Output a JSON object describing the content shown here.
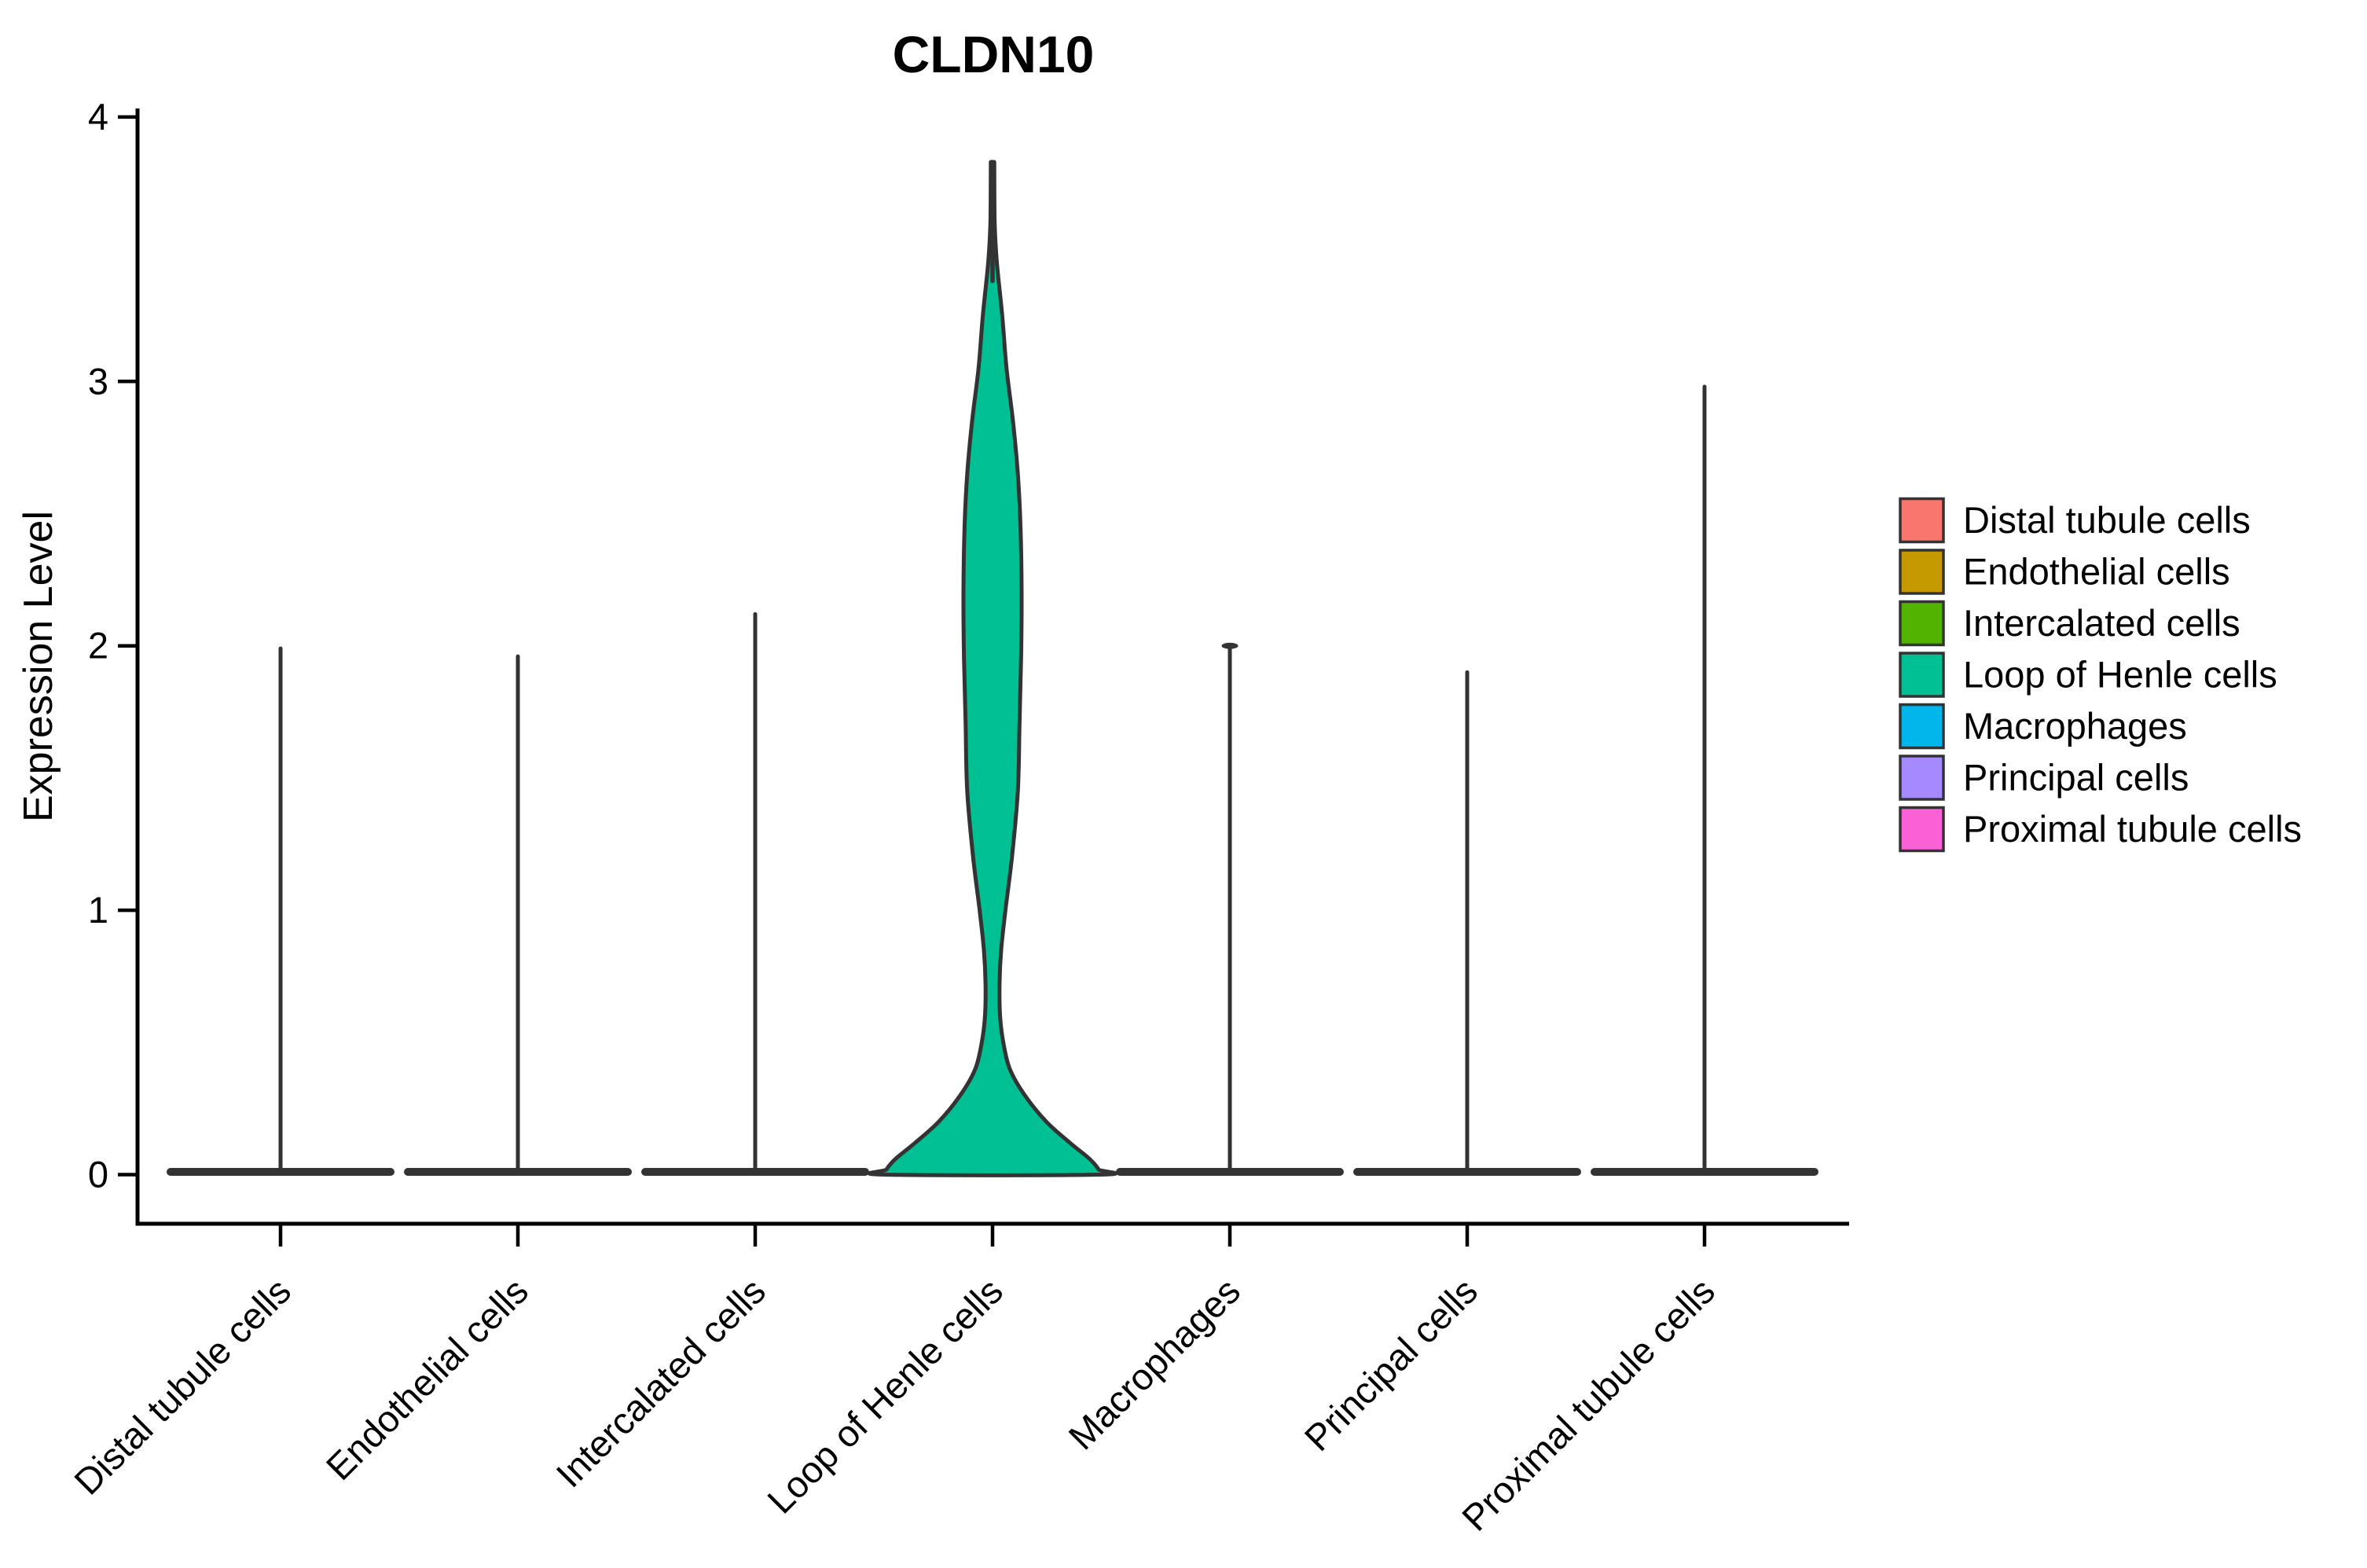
{
  "chart_data": {
    "type": "violin",
    "title": "CLDN10",
    "ylabel": "Expression Level",
    "xlabel": "",
    "grid": false,
    "legend_position": "right",
    "ylim": [
      -0.19,
      4.02
    ],
    "yticks": [
      0,
      1,
      2,
      3,
      4
    ],
    "categories": [
      "Distal tubule cells",
      "Endothelial cells",
      "Intercalated cells",
      "Loop of Henle cells",
      "Macrophages",
      "Principal cells",
      "Proximal tubule cells"
    ],
    "series": [
      {
        "name": "Distal tubule cells",
        "color": "#F8766D",
        "max_expression": 1.99,
        "shape": "spike",
        "base_at_zero": true,
        "top_cap": false
      },
      {
        "name": "Endothelial cells",
        "color": "#C49A00",
        "max_expression": 1.96,
        "shape": "spike",
        "base_at_zero": true,
        "top_cap": false
      },
      {
        "name": "Intercalated cells",
        "color": "#53B400",
        "max_expression": 2.12,
        "shape": "spike",
        "base_at_zero": true,
        "top_cap": false
      },
      {
        "name": "Loop of Henle cells",
        "color": "#00C094",
        "max_expression": 3.83,
        "shape": "violin",
        "base_at_zero": true,
        "top_cap": false,
        "density_profile": [
          [
            3.83,
            0.0
          ],
          [
            3.6,
            0.02
          ],
          [
            3.45,
            0.04
          ],
          [
            3.25,
            0.09
          ],
          [
            3.05,
            0.13
          ],
          [
            2.85,
            0.19
          ],
          [
            2.65,
            0.235
          ],
          [
            2.45,
            0.26
          ],
          [
            2.2,
            0.27
          ],
          [
            1.95,
            0.265
          ],
          [
            1.7,
            0.25
          ],
          [
            1.45,
            0.235
          ],
          [
            1.2,
            0.18
          ],
          [
            1.0,
            0.12
          ],
          [
            0.85,
            0.08
          ],
          [
            0.72,
            0.065
          ],
          [
            0.6,
            0.07
          ],
          [
            0.5,
            0.1
          ],
          [
            0.4,
            0.16
          ],
          [
            0.3,
            0.3
          ],
          [
            0.2,
            0.5
          ],
          [
            0.12,
            0.72
          ],
          [
            0.06,
            0.9
          ],
          [
            0.02,
            0.985
          ],
          [
            0.0,
            1.0
          ]
        ]
      },
      {
        "name": "Macrophages",
        "color": "#00B6EB",
        "max_expression": 2.0,
        "shape": "spike",
        "base_at_zero": true,
        "top_cap": true
      },
      {
        "name": "Principal cells",
        "color": "#A58AFF",
        "max_expression": 1.9,
        "shape": "spike",
        "base_at_zero": true,
        "top_cap": false
      },
      {
        "name": "Proximal tubule cells",
        "color": "#FB61D7",
        "max_expression": 2.98,
        "shape": "spike",
        "base_at_zero": true,
        "top_cap": false
      }
    ],
    "legend": [
      {
        "label": "Distal tubule cells",
        "color": "#F8766D"
      },
      {
        "label": "Endothelial cells",
        "color": "#C49A00"
      },
      {
        "label": "Intercalated cells",
        "color": "#53B400"
      },
      {
        "label": "Loop of Henle cells",
        "color": "#00C094"
      },
      {
        "label": "Macrophages",
        "color": "#00B6EB"
      },
      {
        "label": "Principal cells",
        "color": "#A58AFF"
      },
      {
        "label": "Proximal tubule cells",
        "color": "#FB61D7"
      }
    ],
    "outline_color": "#333333",
    "axis_color": "#000000"
  }
}
